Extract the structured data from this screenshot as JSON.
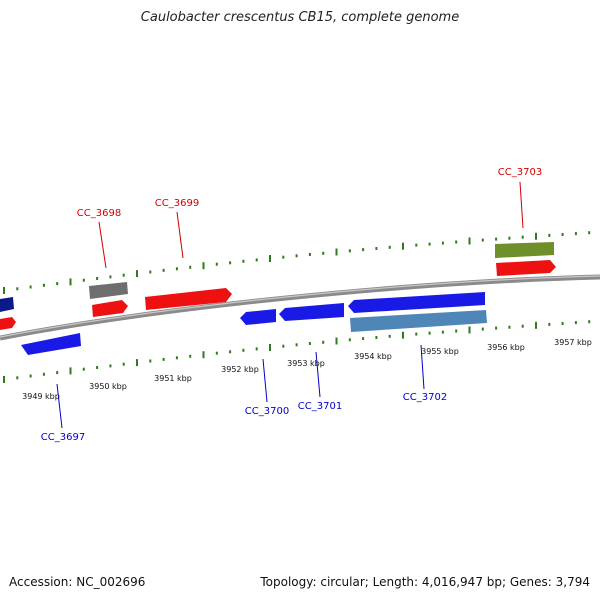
{
  "title": "Caulobacter crescentus CB15, complete genome",
  "footer": {
    "accession": "Accession: NC_002696",
    "summary": "Topology: circular; Length: 4,016,947 bp; Genes: 3,794"
  },
  "colors": {
    "backbone": "#8a8a8a",
    "tick": "#2e7d1a",
    "forward_label": "#d00000",
    "reverse_label": "#0000cc",
    "red_gene": "#ee1111",
    "blue_gene": "#1a1ae6",
    "gray_gene": "#6e6e6e",
    "green_gene": "#6f8f2a",
    "steel_gene": "#4f86b8",
    "navy_gene": "#0a1a8a"
  },
  "axis_labels": [
    {
      "kbp": 3949,
      "text": "3949 kbp"
    },
    {
      "kbp": 3950,
      "text": "3950 kbp"
    },
    {
      "kbp": 3951,
      "text": "3951 kbp"
    },
    {
      "kbp": 3952,
      "text": "3952 kbp"
    },
    {
      "kbp": 3953,
      "text": "3953 kbp"
    },
    {
      "kbp": 3954,
      "text": "3954 kbp"
    },
    {
      "kbp": 3955,
      "text": "3955 kbp"
    },
    {
      "kbp": 3956,
      "text": "3956 kbp"
    },
    {
      "kbp": 3957,
      "text": "3957 kbp"
    }
  ],
  "genes": [
    {
      "name": "CC_3697",
      "label": "CC_3697",
      "strand": "reverse"
    },
    {
      "name": "CC_3698",
      "label": "CC_3698",
      "strand": "forward"
    },
    {
      "name": "CC_3699",
      "label": "CC_3699",
      "strand": "forward"
    },
    {
      "name": "CC_3700",
      "label": "CC_3700",
      "strand": "reverse"
    },
    {
      "name": "CC_3701",
      "label": "CC_3701",
      "strand": "reverse"
    },
    {
      "name": "CC_3702",
      "label": "CC_3702",
      "strand": "reverse"
    },
    {
      "name": "CC_3703",
      "label": "CC_3703",
      "strand": "forward"
    }
  ]
}
